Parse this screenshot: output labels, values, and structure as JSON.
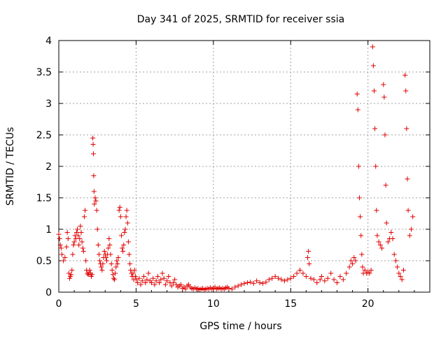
{
  "chart_data": {
    "type": "scatter",
    "title": "Day 341 of 2025, SRMTID for receiver ssia",
    "xlabel": "GPS time / hours",
    "ylabel": "SRMTID / TECUs",
    "xlim": [
      0,
      24
    ],
    "ylim": [
      0,
      4
    ],
    "grid": true,
    "marker": "+",
    "marker_color": "#e00000",
    "xticks": [
      {
        "value": 0,
        "label": "0"
      },
      {
        "value": 5,
        "label": "5"
      },
      {
        "value": 10,
        "label": "10"
      },
      {
        "value": 15,
        "label": "15"
      },
      {
        "value": 20,
        "label": "20"
      }
    ],
    "yticks": [
      {
        "value": 0,
        "label": "0"
      },
      {
        "value": 0.5,
        "label": "0.5"
      },
      {
        "value": 1,
        "label": "1"
      },
      {
        "value": 1.5,
        "label": "1.5"
      },
      {
        "value": 2,
        "label": "2"
      },
      {
        "value": 2.5,
        "label": "2.5"
      },
      {
        "value": 3,
        "label": "3"
      },
      {
        "value": 3.5,
        "label": "3.5"
      },
      {
        "value": 4,
        "label": "4"
      }
    ],
    "series": [
      {
        "name": "SRMTID",
        "points": [
          [
            0.0,
            0.92
          ],
          [
            0.05,
            0.85
          ],
          [
            0.1,
            0.75
          ],
          [
            0.15,
            0.7
          ],
          [
            0.2,
            0.6
          ],
          [
            0.3,
            0.5
          ],
          [
            0.4,
            0.55
          ],
          [
            0.5,
            0.72
          ],
          [
            0.55,
            0.95
          ],
          [
            0.6,
            0.85
          ],
          [
            0.65,
            0.3
          ],
          [
            0.7,
            0.22
          ],
          [
            0.75,
            0.25
          ],
          [
            0.8,
            0.28
          ],
          [
            0.85,
            0.35
          ],
          [
            0.9,
            0.6
          ],
          [
            0.95,
            0.75
          ],
          [
            1.0,
            0.8
          ],
          [
            1.05,
            0.9
          ],
          [
            1.1,
            0.85
          ],
          [
            1.15,
            0.95
          ],
          [
            1.2,
            1.0
          ],
          [
            1.25,
            0.9
          ],
          [
            1.3,
            0.75
          ],
          [
            1.35,
            0.85
          ],
          [
            1.4,
            1.05
          ],
          [
            1.45,
            0.95
          ],
          [
            1.5,
            0.8
          ],
          [
            1.55,
            0.7
          ],
          [
            1.6,
            0.65
          ],
          [
            1.65,
            1.2
          ],
          [
            1.7,
            1.3
          ],
          [
            1.75,
            0.5
          ],
          [
            1.8,
            0.35
          ],
          [
            1.85,
            0.3
          ],
          [
            1.9,
            0.28
          ],
          [
            1.95,
            0.3
          ],
          [
            2.0,
            0.35
          ],
          [
            2.05,
            0.3
          ],
          [
            2.1,
            0.25
          ],
          [
            2.15,
            0.28
          ],
          [
            2.2,
            2.45
          ],
          [
            2.22,
            2.35
          ],
          [
            2.24,
            2.2
          ],
          [
            2.26,
            1.85
          ],
          [
            2.28,
            1.6
          ],
          [
            2.3,
            1.4
          ],
          [
            2.35,
            1.5
          ],
          [
            2.4,
            1.45
          ],
          [
            2.45,
            1.3
          ],
          [
            2.5,
            1.0
          ],
          [
            2.55,
            0.75
          ],
          [
            2.6,
            0.6
          ],
          [
            2.65,
            0.5
          ],
          [
            2.7,
            0.45
          ],
          [
            2.75,
            0.4
          ],
          [
            2.8,
            0.35
          ],
          [
            2.85,
            0.45
          ],
          [
            2.9,
            0.55
          ],
          [
            2.95,
            0.65
          ],
          [
            3.0,
            0.6
          ],
          [
            3.05,
            0.55
          ],
          [
            3.1,
            0.5
          ],
          [
            3.15,
            0.6
          ],
          [
            3.2,
            0.7
          ],
          [
            3.25,
            0.85
          ],
          [
            3.3,
            0.75
          ],
          [
            3.35,
            0.6
          ],
          [
            3.4,
            0.45
          ],
          [
            3.45,
            0.35
          ],
          [
            3.5,
            0.28
          ],
          [
            3.55,
            0.22
          ],
          [
            3.6,
            0.2
          ],
          [
            3.65,
            0.3
          ],
          [
            3.7,
            0.4
          ],
          [
            3.75,
            0.5
          ],
          [
            3.8,
            0.45
          ],
          [
            3.85,
            0.55
          ],
          [
            3.9,
            1.3
          ],
          [
            3.95,
            1.35
          ],
          [
            4.0,
            1.2
          ],
          [
            4.05,
            0.9
          ],
          [
            4.1,
            0.7
          ],
          [
            4.15,
            0.65
          ],
          [
            4.2,
            0.75
          ],
          [
            4.25,
            0.95
          ],
          [
            4.3,
            1.0
          ],
          [
            4.35,
            1.2
          ],
          [
            4.4,
            1.3
          ],
          [
            4.45,
            1.1
          ],
          [
            4.5,
            0.8
          ],
          [
            4.55,
            0.6
          ],
          [
            4.6,
            0.45
          ],
          [
            4.65,
            0.35
          ],
          [
            4.7,
            0.3
          ],
          [
            4.75,
            0.25
          ],
          [
            4.8,
            0.3
          ],
          [
            4.85,
            0.2
          ],
          [
            4.9,
            0.35
          ],
          [
            4.95,
            0.25
          ],
          [
            5.0,
            0.2
          ],
          [
            5.1,
            0.15
          ],
          [
            5.2,
            0.22
          ],
          [
            5.3,
            0.12
          ],
          [
            5.4,
            0.18
          ],
          [
            5.5,
            0.25
          ],
          [
            5.6,
            0.15
          ],
          [
            5.7,
            0.2
          ],
          [
            5.8,
            0.3
          ],
          [
            5.9,
            0.18
          ],
          [
            6.0,
            0.15
          ],
          [
            6.1,
            0.22
          ],
          [
            6.2,
            0.12
          ],
          [
            6.3,
            0.18
          ],
          [
            6.4,
            0.25
          ],
          [
            6.5,
            0.15
          ],
          [
            6.6,
            0.2
          ],
          [
            6.7,
            0.3
          ],
          [
            6.8,
            0.22
          ],
          [
            6.9,
            0.12
          ],
          [
            7.0,
            0.18
          ],
          [
            7.1,
            0.25
          ],
          [
            7.2,
            0.15
          ],
          [
            7.3,
            0.1
          ],
          [
            7.4,
            0.15
          ],
          [
            7.5,
            0.2
          ],
          [
            7.6,
            0.12
          ],
          [
            7.7,
            0.08
          ],
          [
            7.8,
            0.1
          ],
          [
            7.9,
            0.12
          ],
          [
            8.0,
            0.06
          ],
          [
            8.1,
            0.08
          ],
          [
            8.2,
            0.05
          ],
          [
            8.3,
            0.1
          ],
          [
            8.4,
            0.12
          ],
          [
            8.5,
            0.08
          ],
          [
            8.6,
            0.06
          ],
          [
            8.7,
            0.05
          ],
          [
            8.8,
            0.07
          ],
          [
            8.9,
            0.05
          ],
          [
            9.0,
            0.06
          ],
          [
            9.1,
            0.04
          ],
          [
            9.2,
            0.05
          ],
          [
            9.3,
            0.06
          ],
          [
            9.4,
            0.04
          ],
          [
            9.5,
            0.05
          ],
          [
            9.6,
            0.06
          ],
          [
            9.7,
            0.05
          ],
          [
            9.8,
            0.07
          ],
          [
            9.9,
            0.05
          ],
          [
            10.0,
            0.06
          ],
          [
            10.1,
            0.08
          ],
          [
            10.2,
            0.05
          ],
          [
            10.3,
            0.06
          ],
          [
            10.4,
            0.07
          ],
          [
            10.5,
            0.05
          ],
          [
            10.6,
            0.06
          ],
          [
            10.7,
            0.05
          ],
          [
            10.8,
            0.07
          ],
          [
            10.9,
            0.08
          ],
          [
            11.0,
            0.06
          ],
          [
            11.2,
            0.05
          ],
          [
            11.4,
            0.08
          ],
          [
            11.6,
            0.1
          ],
          [
            11.8,
            0.12
          ],
          [
            12.0,
            0.14
          ],
          [
            12.2,
            0.15
          ],
          [
            12.4,
            0.16
          ],
          [
            12.6,
            0.14
          ],
          [
            12.8,
            0.18
          ],
          [
            13.0,
            0.15
          ],
          [
            13.2,
            0.14
          ],
          [
            13.4,
            0.16
          ],
          [
            13.6,
            0.2
          ],
          [
            13.8,
            0.22
          ],
          [
            14.0,
            0.25
          ],
          [
            14.2,
            0.22
          ],
          [
            14.4,
            0.2
          ],
          [
            14.6,
            0.18
          ],
          [
            14.8,
            0.2
          ],
          [
            15.0,
            0.22
          ],
          [
            15.2,
            0.25
          ],
          [
            15.4,
            0.3
          ],
          [
            15.6,
            0.35
          ],
          [
            15.8,
            0.3
          ],
          [
            16.0,
            0.25
          ],
          [
            16.1,
            0.55
          ],
          [
            16.15,
            0.65
          ],
          [
            16.2,
            0.45
          ],
          [
            16.3,
            0.22
          ],
          [
            16.5,
            0.2
          ],
          [
            16.7,
            0.15
          ],
          [
            16.9,
            0.2
          ],
          [
            17.0,
            0.25
          ],
          [
            17.2,
            0.18
          ],
          [
            17.4,
            0.22
          ],
          [
            17.6,
            0.3
          ],
          [
            17.8,
            0.2
          ],
          [
            18.0,
            0.15
          ],
          [
            18.2,
            0.25
          ],
          [
            18.4,
            0.2
          ],
          [
            18.6,
            0.3
          ],
          [
            18.8,
            0.4
          ],
          [
            18.9,
            0.5
          ],
          [
            19.0,
            0.45
          ],
          [
            19.1,
            0.55
          ],
          [
            19.2,
            0.5
          ],
          [
            19.3,
            3.15
          ],
          [
            19.35,
            2.9
          ],
          [
            19.4,
            2.0
          ],
          [
            19.45,
            1.5
          ],
          [
            19.5,
            1.2
          ],
          [
            19.55,
            0.9
          ],
          [
            19.6,
            0.6
          ],
          [
            19.65,
            0.4
          ],
          [
            19.7,
            0.3
          ],
          [
            19.8,
            0.35
          ],
          [
            19.9,
            0.3
          ],
          [
            20.0,
            0.32
          ],
          [
            20.1,
            0.3
          ],
          [
            20.2,
            0.35
          ],
          [
            20.3,
            3.9
          ],
          [
            20.35,
            3.6
          ],
          [
            20.4,
            3.2
          ],
          [
            20.45,
            2.6
          ],
          [
            20.5,
            2.0
          ],
          [
            20.55,
            1.3
          ],
          [
            20.6,
            0.9
          ],
          [
            20.7,
            0.8
          ],
          [
            20.8,
            0.75
          ],
          [
            20.9,
            0.7
          ],
          [
            21.0,
            3.3
          ],
          [
            21.05,
            3.1
          ],
          [
            21.1,
            2.5
          ],
          [
            21.15,
            1.7
          ],
          [
            21.2,
            1.1
          ],
          [
            21.3,
            0.8
          ],
          [
            21.4,
            0.85
          ],
          [
            21.5,
            0.95
          ],
          [
            21.6,
            0.85
          ],
          [
            21.7,
            0.6
          ],
          [
            21.8,
            0.5
          ],
          [
            21.9,
            0.4
          ],
          [
            22.0,
            0.3
          ],
          [
            22.1,
            0.25
          ],
          [
            22.2,
            0.2
          ],
          [
            22.3,
            0.35
          ],
          [
            22.4,
            3.45
          ],
          [
            22.45,
            3.2
          ],
          [
            22.5,
            2.6
          ],
          [
            22.55,
            1.8
          ],
          [
            22.6,
            1.3
          ],
          [
            22.7,
            0.9
          ],
          [
            22.8,
            1.0
          ],
          [
            22.9,
            1.2
          ]
        ]
      }
    ]
  }
}
